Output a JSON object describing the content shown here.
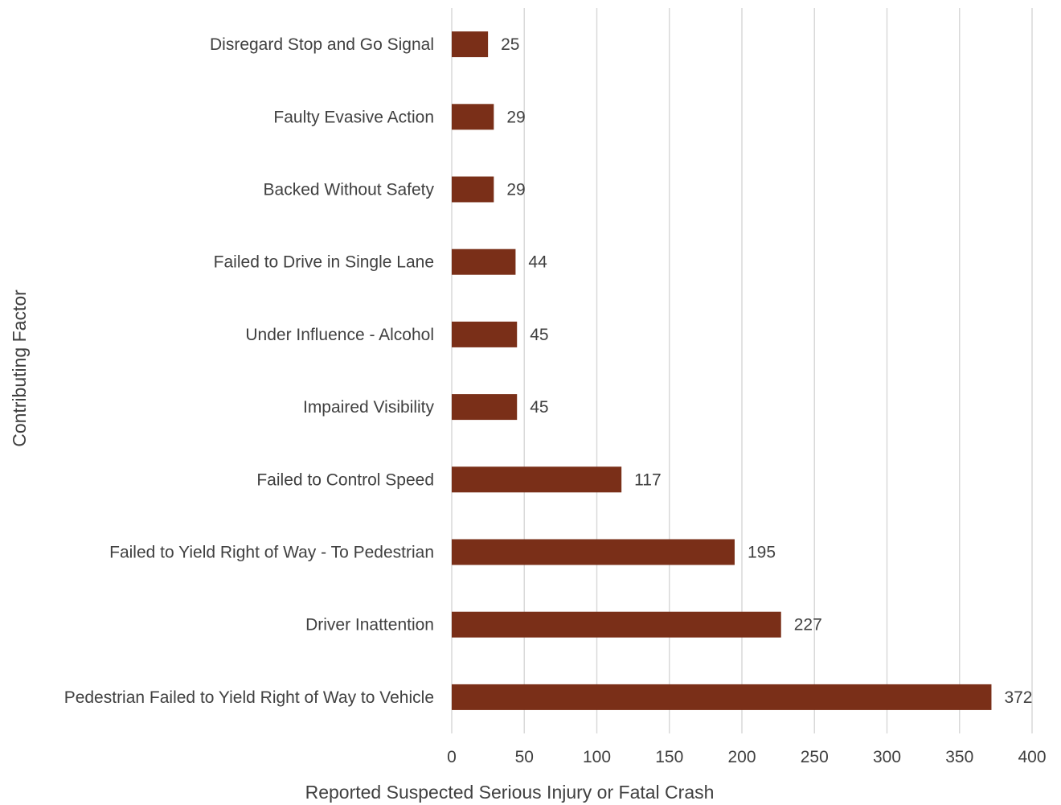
{
  "chart_data": {
    "type": "bar",
    "orientation": "horizontal",
    "categories": [
      "Disregard Stop and Go Signal",
      "Faulty Evasive Action",
      "Backed Without Safety",
      "Failed to Drive in Single Lane",
      "Under Influence - Alcohol",
      "Impaired Visibility",
      "Failed to Control Speed",
      "Failed to Yield Right of Way - To Pedestrian",
      "Driver Inattention",
      "Pedestrian Failed to Yield Right of Way to Vehicle"
    ],
    "values": [
      25,
      29,
      29,
      44,
      45,
      45,
      117,
      195,
      227,
      372
    ],
    "data_labels": [
      "25",
      "29",
      "29",
      "44",
      "45",
      "45",
      "117",
      "195",
      "227",
      "372"
    ],
    "xticks": [
      0,
      50,
      100,
      150,
      200,
      250,
      300,
      350,
      400
    ],
    "xtick_labels": [
      "0",
      "50",
      "100",
      "150",
      "200",
      "250",
      "300",
      "350",
      "400"
    ],
    "xlim": [
      0,
      400
    ],
    "xlabel": "Reported Suspected Serious Injury or Fatal Crash",
    "ylabel": "Contributing Factor",
    "grid": "vertical",
    "legend": "none",
    "bar_color": "#7a2f18",
    "grid_color": "#d9d9d9",
    "text_color": "#404040"
  }
}
